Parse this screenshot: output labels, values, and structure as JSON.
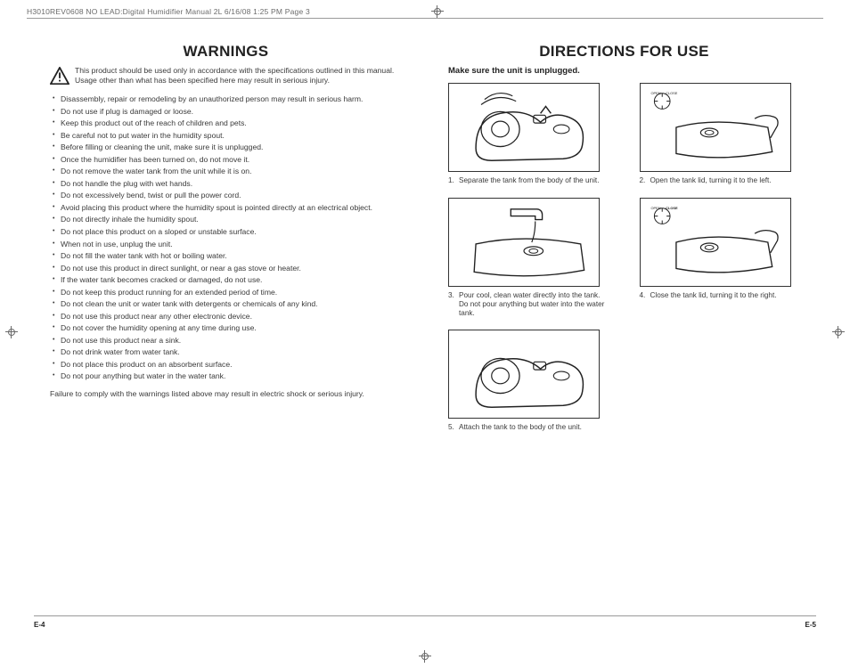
{
  "header_line": "H3010REV0608 NO LEAD:Digital Humidifier Manual 2L  6/16/08  1:25 PM  Page 3",
  "left": {
    "title": "WARNINGS",
    "intro": "This product should be used only in accordance with the specifications outlined in this manual. Usage other than what has been specified here may result in serious injury.",
    "items": [
      "Disassembly, repair or remodeling by an unauthorized person may result in serious harm.",
      "Do not use if plug is damaged or loose.",
      "Keep this product out of the reach of children and pets.",
      "Be careful not to put water in the humidity spout.",
      "Before filling or cleaning the unit, make sure it is unplugged.",
      "Once the humidifier has been turned on, do not move it.",
      "Do not remove the water tank from the unit while it is on.",
      "Do not handle the plug with wet hands.",
      "Do not excessively bend, twist or pull the power cord.",
      "Avoid placing this product where the humidity spout is pointed directly at an electrical object.",
      "Do not directly inhale the humidity spout.",
      "Do not place this product on a sloped or unstable surface.",
      "When not in use, unplug the unit.",
      "Do not fill the water tank with hot or boiling water.",
      "Do not use this product in direct sunlight, or near a gas stove or heater.",
      "If the water tank becomes cracked or damaged, do not use.",
      "Do not keep this product running for an extended period of time.",
      "Do not clean the unit or water tank with detergents or chemicals of any kind.",
      "Do not use this product near any other electronic device.",
      "Do not cover the humidity opening at any time during use.",
      "Do not use this product near a sink.",
      "Do not drink water from water tank.",
      "Do not place this product on an absorbent surface.",
      "Do not pour anything but water in the water tank."
    ],
    "footer": "Failure to comply with the warnings listed above may result in electric shock or serious injury."
  },
  "right": {
    "title": "DIRECTIONS FOR USE",
    "sub": "Make sure the unit is unplugged.",
    "steps": [
      {
        "n": "1.",
        "text": "Separate the tank from the body of the unit."
      },
      {
        "n": "2.",
        "text": "Open the tank lid, turning it to the left."
      },
      {
        "n": "3.",
        "text": "Pour cool, clean water directly into the tank. Do not pour anything but water into the water tank."
      },
      {
        "n": "4.",
        "text": "Close the tank lid, turning it to the right."
      },
      {
        "n": "5.",
        "text": "Attach the tank to the body of the unit."
      }
    ]
  },
  "page_left": "E-4",
  "page_right": "E-5",
  "colors": {
    "text": "#3a3a3a",
    "rule": "#9a9a9a",
    "black": "#222222",
    "bg": "#ffffff"
  }
}
